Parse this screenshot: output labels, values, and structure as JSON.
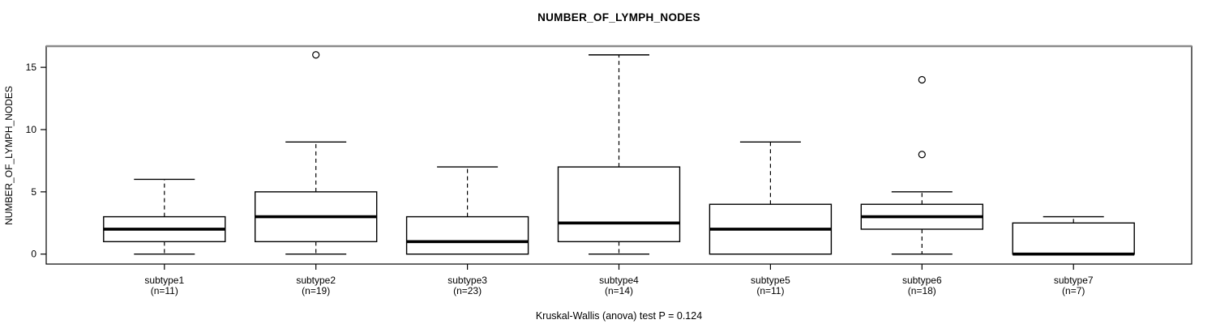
{
  "page": {
    "background_color": "#ffffff",
    "accent_color": "#000000"
  },
  "chart_data": {
    "type": "boxplot",
    "title": "NUMBER_OF_LYMPH_NODES",
    "ylabel": "NUMBER_OF_LYMPH_NODES",
    "xlabel": "",
    "footer": "Kruskal-Wallis (anova) test P = 0.124",
    "grid": "off",
    "legend": "none",
    "y_ticks": [
      0,
      5,
      10,
      15
    ],
    "ylim": [
      -0.8,
      16.7
    ],
    "colors": {
      "box_fill": "#ffffff",
      "line": "#000000",
      "frame_top_shadow": "#8a8a8a"
    },
    "groups": [
      {
        "label": "subtype1",
        "caption": "(n=11)",
        "n": 11,
        "whisker_low": 0,
        "q1": 1,
        "median": 2,
        "q3": 3,
        "whisker_high": 6,
        "outliers": []
      },
      {
        "label": "subtype2",
        "caption": "(n=19)",
        "n": 19,
        "whisker_low": 0,
        "q1": 1,
        "median": 3,
        "q3": 5,
        "whisker_high": 9,
        "outliers": [
          16
        ]
      },
      {
        "label": "subtype3",
        "caption": "(n=23)",
        "n": 23,
        "whisker_low": 0,
        "q1": 0,
        "median": 1,
        "q3": 3,
        "whisker_high": 7,
        "outliers": []
      },
      {
        "label": "subtype4",
        "caption": "(n=14)",
        "n": 14,
        "whisker_low": 0,
        "q1": 1,
        "median": 2.5,
        "q3": 7,
        "whisker_high": 16,
        "outliers": []
      },
      {
        "label": "subtype5",
        "caption": "(n=11)",
        "n": 11,
        "whisker_low": 0,
        "q1": 0,
        "median": 2,
        "q3": 4,
        "whisker_high": 9,
        "outliers": []
      },
      {
        "label": "subtype6",
        "caption": "(n=18)",
        "n": 18,
        "whisker_low": 0,
        "q1": 2,
        "median": 3,
        "q3": 4,
        "whisker_high": 5,
        "outliers": [
          8,
          14
        ]
      },
      {
        "label": "subtype7",
        "caption": "(n=7)",
        "n": 7,
        "whisker_low": 0,
        "q1": 0,
        "median": 0,
        "q3": 2.5,
        "whisker_high": 3,
        "outliers": []
      }
    ]
  }
}
